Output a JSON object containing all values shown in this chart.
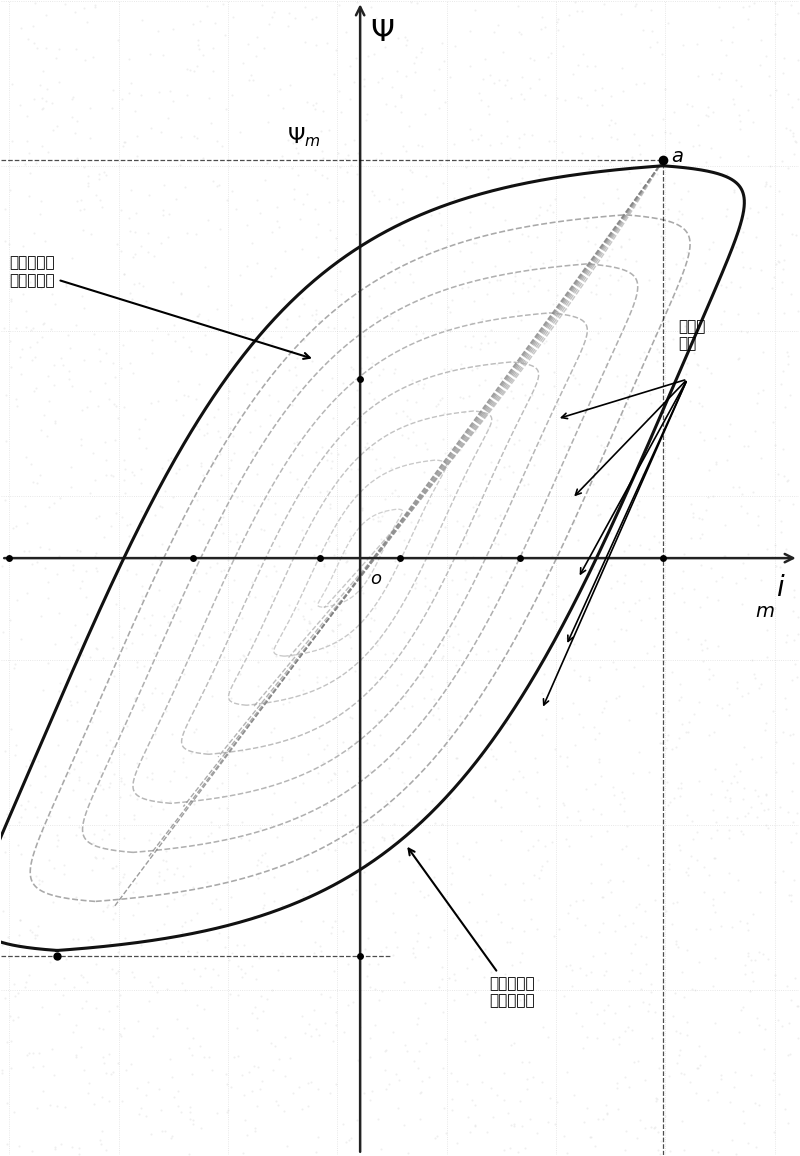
{
  "bg_color": "#ffffff",
  "main_loop_color": "#111111",
  "gray_loop_color": "#999999",
  "dark_gray_color": "#555555",
  "axis_color": "#222222",
  "dashed_color": "#bbbbbb",
  "dot_color": "#cccccc",
  "ylabel_text": "Ψ",
  "xlabel_text": "i",
  "xlabel_sub": "m",
  "psi_m_label": "Ψₘ",
  "point_a_label": "a",
  "origin_label": "o",
  "label_left_upper": "极限磁化回\n线下降分支",
  "label_right_upper": "磁化回\n线簇",
  "label_left_lower": "极限磁化回\n线上升分支",
  "xlim": [
    -4.5,
    5.5
  ],
  "ylim": [
    -7.5,
    7.0
  ],
  "xm": 3.8,
  "ym": 5.0,
  "xm_tick": 3.0,
  "num_inner_loops": 8
}
